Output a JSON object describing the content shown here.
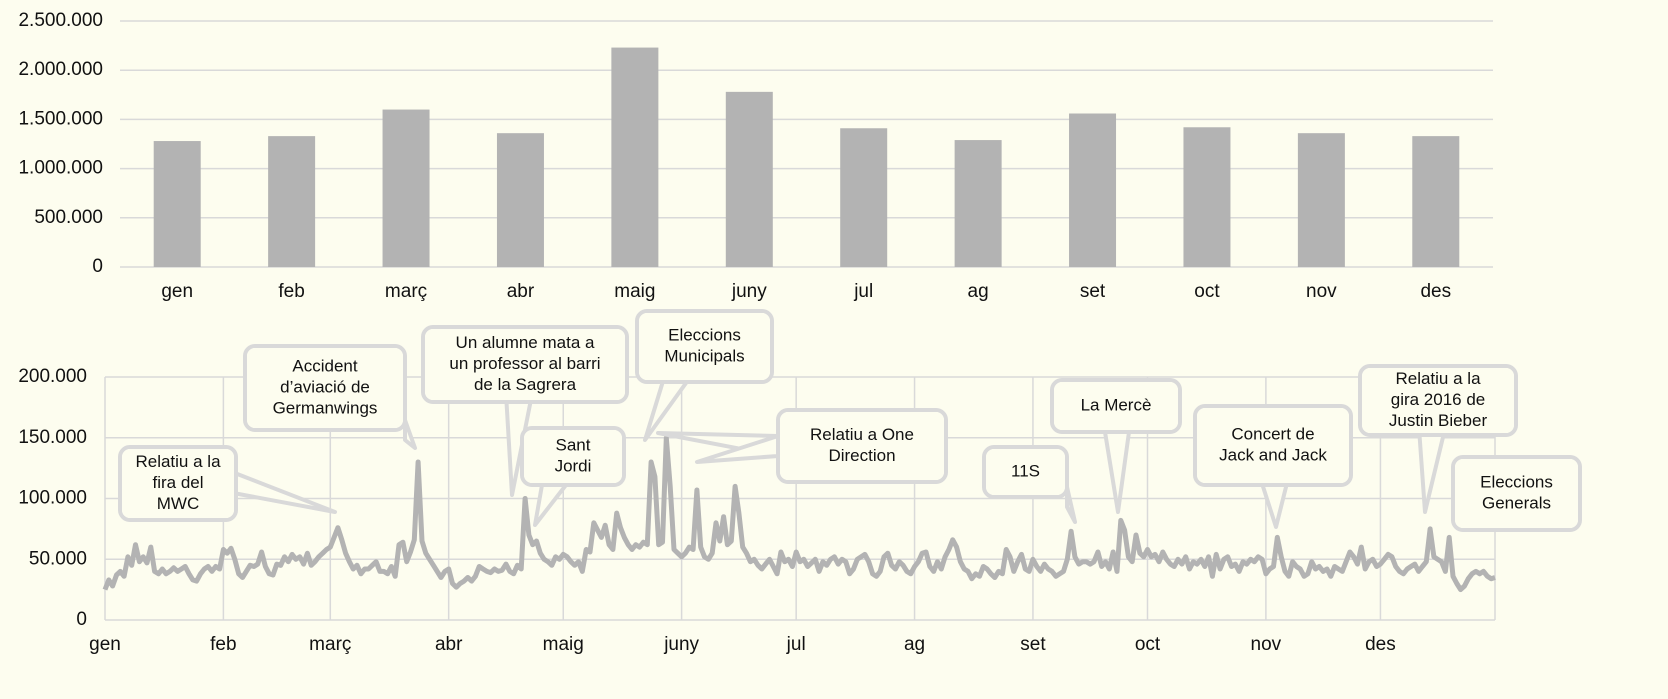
{
  "chart_data": [
    {
      "type": "bar",
      "categories": [
        "gen",
        "feb",
        "març",
        "abr",
        "maig",
        "juny",
        "jul",
        "ag",
        "set",
        "oct",
        "nov",
        "des"
      ],
      "values": [
        1280000,
        1330000,
        1600000,
        1360000,
        2230000,
        1780000,
        1410000,
        1290000,
        1560000,
        1420000,
        1360000,
        1330000
      ],
      "color": "#b3b3b3",
      "ylim": [
        0,
        2500000
      ],
      "yticks": [
        0,
        {
          "value": 500000,
          "label": "500.000"
        },
        {
          "value": 1000000,
          "label": "1.000.000"
        },
        {
          "value": 1500000,
          "label": "1.500.000"
        },
        {
          "value": 2000000,
          "label": "2.000.000"
        },
        {
          "value": 2500000,
          "label": "2.500.000"
        }
      ],
      "grid": true
    },
    {
      "type": "line",
      "color": "#b3b3b3",
      "values": [
        25000,
        33000,
        28000,
        37000,
        40000,
        36000,
        52000,
        45000,
        62000,
        48000,
        52000,
        47000,
        60000,
        40000,
        38000,
        42000,
        38000,
        40000,
        43000,
        40000,
        42000,
        44000,
        38000,
        33000,
        32000,
        38000,
        42000,
        44000,
        40000,
        44000,
        42000,
        58000,
        55000,
        59000,
        50000,
        38000,
        35000,
        40000,
        45000,
        44000,
        46000,
        56000,
        44000,
        38000,
        37000,
        46000,
        45000,
        52000,
        48000,
        54000,
        50000,
        52000,
        46000,
        55000,
        45000,
        48000,
        52000,
        55000,
        58000,
        60000,
        68000,
        76000,
        66000,
        55000,
        48000,
        42000,
        45000,
        38000,
        42000,
        42000,
        45000,
        48000,
        40000,
        40000,
        38000,
        44000,
        36000,
        62000,
        64000,
        48000,
        56000,
        66000,
        130000,
        65000,
        55000,
        50000,
        45000,
        40000,
        35000,
        40000,
        42000,
        30000,
        27000,
        30000,
        32000,
        35000,
        32000,
        36000,
        44000,
        42000,
        40000,
        39000,
        42000,
        40000,
        41000,
        46000,
        40000,
        38000,
        45000,
        42000,
        100000,
        70000,
        62000,
        65000,
        55000,
        50000,
        48000,
        45000,
        52000,
        50000,
        54000,
        52000,
        48000,
        45000,
        48000,
        40000,
        58000,
        56000,
        80000,
        74000,
        68000,
        78000,
        62000,
        58000,
        88000,
        76000,
        68000,
        62000,
        58000,
        62000,
        60000,
        64000,
        62000,
        130000,
        118000,
        62000,
        64000,
        150000,
        110000,
        58000,
        55000,
        52000,
        55000,
        60000,
        58000,
        107000,
        60000,
        52000,
        50000,
        55000,
        80000,
        65000,
        85000,
        62000,
        65000,
        110000,
        88000,
        60000,
        55000,
        48000,
        50000,
        45000,
        42000,
        46000,
        50000,
        44000,
        38000,
        56000,
        48000,
        50000,
        44000,
        56000,
        48000,
        50000,
        44000,
        47000,
        50000,
        40000,
        48000,
        45000,
        50000,
        52000,
        46000,
        50000,
        48000,
        38000,
        42000,
        50000,
        52000,
        54000,
        48000,
        38000,
        36000,
        40000,
        52000,
        55000,
        45000,
        42000,
        48000,
        45000,
        40000,
        38000,
        44000,
        48000,
        55000,
        56000,
        44000,
        40000,
        48000,
        42000,
        52000,
        58000,
        66000,
        60000,
        48000,
        42000,
        40000,
        34000,
        38000,
        36000,
        44000,
        42000,
        38000,
        35000,
        40000,
        38000,
        58000,
        52000,
        40000,
        48000,
        54000,
        42000,
        40000,
        50000,
        44000,
        40000,
        46000,
        42000,
        40000,
        36000,
        38000,
        40000,
        50000,
        73000,
        52000,
        46000,
        48000,
        48000,
        46000,
        48000,
        56000,
        44000,
        48000,
        42000,
        56000,
        40000,
        82000,
        74000,
        52000,
        48000,
        70000,
        55000,
        52000,
        58000,
        52000,
        54000,
        48000,
        56000,
        50000,
        46000,
        44000,
        50000,
        46000,
        52000,
        42000,
        48000,
        46000,
        50000,
        44000,
        52000,
        36000,
        54000,
        42000,
        50000,
        52000,
        44000,
        46000,
        40000,
        48000,
        46000,
        50000,
        48000,
        52000,
        50000,
        38000,
        42000,
        44000,
        68000,
        52000,
        40000,
        36000,
        48000,
        44000,
        42000,
        36000,
        38000,
        48000,
        42000,
        44000,
        40000,
        42000,
        36000,
        44000,
        42000,
        40000,
        48000,
        56000,
        52000,
        46000,
        60000,
        42000,
        48000,
        50000,
        44000,
        46000,
        50000,
        54000,
        52000,
        44000,
        40000,
        38000,
        42000,
        44000,
        46000,
        40000,
        44000,
        48000,
        75000,
        52000,
        50000,
        48000,
        40000,
        68000,
        36000,
        30000,
        25000,
        28000,
        34000,
        38000,
        40000,
        38000,
        40000,
        36000,
        34000,
        35000
      ],
      "xlim": [
        0,
        364
      ],
      "xticks": [
        {
          "value": 0,
          "label": "gen"
        },
        {
          "value": 31,
          "label": "feb"
        },
        {
          "value": 59,
          "label": "març"
        },
        {
          "value": 90,
          "label": "abr"
        },
        {
          "value": 120,
          "label": "maig"
        },
        {
          "value": 151,
          "label": "juny"
        },
        {
          "value": 181,
          "label": "jul"
        },
        {
          "value": 212,
          "label": "ag"
        },
        {
          "value": 243,
          "label": "set"
        },
        {
          "value": 273,
          "label": "oct"
        },
        {
          "value": 304,
          "label": "nov"
        },
        {
          "value": 334,
          "label": "des"
        }
      ],
      "ylim": [
        0,
        200000
      ],
      "yticks": [
        0,
        {
          "value": 50000,
          "label": "50.000"
        },
        {
          "value": 100000,
          "label": "100.000"
        },
        {
          "value": 150000,
          "label": "150.000"
        },
        {
          "value": 200000,
          "label": "200.000"
        }
      ],
      "grid": true,
      "annotations": [
        [
          "Relatiu a la",
          "fira del",
          "MWC"
        ],
        [
          "Accident",
          "d’aviació de",
          "Germanwings"
        ],
        [
          "Un alumne mata a",
          "un professor al barri",
          "de la Sagrera"
        ],
        [
          "Sant",
          "Jordi"
        ],
        [
          "Eleccions",
          "Municipals"
        ],
        [
          "Relatiu a One",
          "Direction"
        ],
        [
          "11S"
        ],
        [
          "La Mercè"
        ],
        [
          "Concert de",
          "Jack and Jack"
        ],
        [
          "Relatiu a la",
          "gira 2016 de",
          "Justin Bieber"
        ],
        [
          "Eleccions",
          "Generals"
        ]
      ]
    }
  ]
}
